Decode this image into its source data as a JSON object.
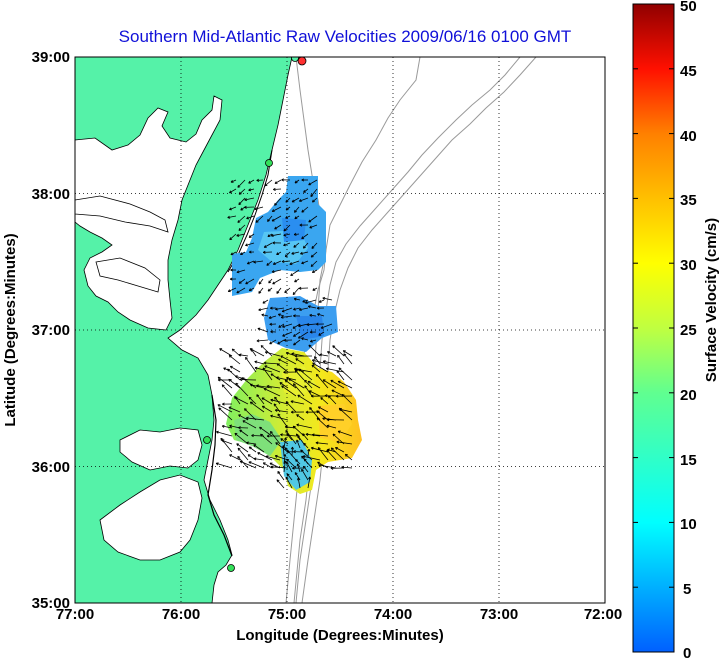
{
  "title": "Southern Mid-Atlantic Raw Velocities 2009/06/16 0100 GMT",
  "xlabel": "Longitude (Degrees:Minutes)",
  "ylabel": "Latitude (Degrees:Minutes)",
  "x_ticks": [
    "77:00",
    "76:00",
    "75:00",
    "74:00",
    "73:00",
    "72:00"
  ],
  "y_ticks": [
    "39:00",
    "38:00",
    "37:00",
    "36:00",
    "35:00"
  ],
  "colorbar": {
    "label": "Surface Velocity (cm/s)",
    "ticks": [
      "50",
      "45",
      "40",
      "35",
      "30",
      "25",
      "20",
      "15",
      "10",
      "5",
      "0"
    ],
    "min": 0,
    "max": 50
  },
  "colors": {
    "land": "#55f2a8",
    "water": "#ffffff",
    "title": "#1010d8",
    "bathymetry": "#9a9a9a",
    "arrows": "#000000"
  }
}
